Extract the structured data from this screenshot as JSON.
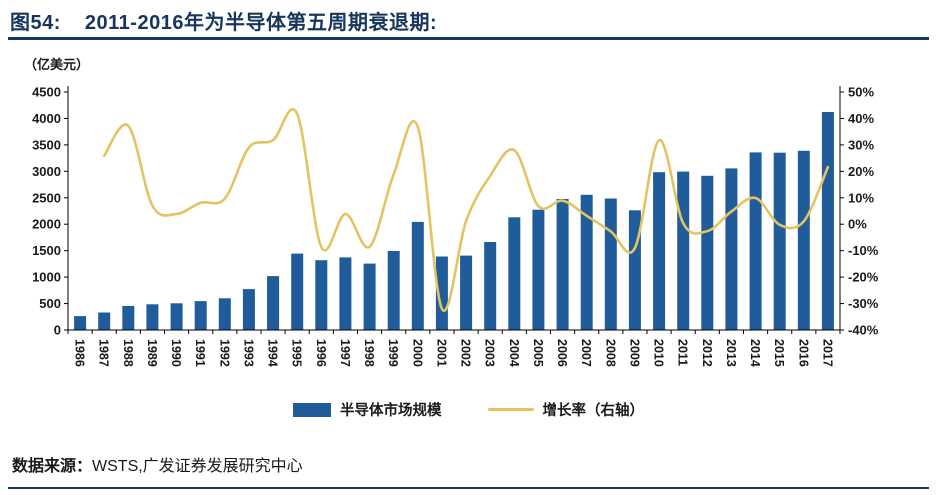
{
  "header": {
    "prefix": "图54:",
    "title": "2011-2016年为半导体第五周期衰退期:"
  },
  "chart_data": {
    "type": "bar+line",
    "title": "2011-2016年为半导体第五周期衰退期",
    "unit_label": "（亿美元）",
    "grid": false,
    "legend_position": "bottom",
    "categories": [
      "1986",
      "1987",
      "1988",
      "1989",
      "1990",
      "1991",
      "1992",
      "1993",
      "1994",
      "1995",
      "1996",
      "1997",
      "1998",
      "1999",
      "2000",
      "2001",
      "2002",
      "2003",
      "2004",
      "2005",
      "2006",
      "2007",
      "2008",
      "2009",
      "2010",
      "2011",
      "2012",
      "2013",
      "2014",
      "2015",
      "2016",
      "2017"
    ],
    "series": [
      {
        "name": "半导体市场规模",
        "type": "bar",
        "axis": "left",
        "color": "#1F5C99",
        "values": [
          263,
          331,
          454,
          486,
          505,
          546,
          599,
          773,
          1019,
          1444,
          1320,
          1372,
          1256,
          1494,
          2044,
          1390,
          1407,
          1664,
          2130,
          2275,
          2477,
          2556,
          2486,
          2263,
          2983,
          2995,
          2916,
          3056,
          3358,
          3352,
          3389,
          4122
        ]
      },
      {
        "name": "增长率（右轴）",
        "type": "line",
        "axis": "right",
        "color": "#E3C462",
        "values": [
          null,
          25.9,
          37.2,
          7.0,
          3.9,
          8.1,
          9.7,
          29.0,
          31.8,
          41.7,
          -8.6,
          3.9,
          -8.5,
          18.9,
          36.8,
          -32.0,
          1.2,
          18.3,
          28.0,
          6.8,
          8.9,
          3.2,
          -2.7,
          -9.0,
          31.8,
          0.4,
          -2.6,
          4.8,
          9.9,
          -0.2,
          1.1,
          21.6
        ]
      }
    ],
    "left_axis": {
      "min": 0,
      "max": 4500,
      "step": 500
    },
    "right_axis": {
      "min": -40,
      "max": 50,
      "step": 10,
      "suffix": "%"
    }
  },
  "footer": {
    "label": "数据来源：",
    "text": "WSTS,广发证券发展研究中心"
  },
  "colors": {
    "bar": "#1F5C99",
    "line": "#E3C462",
    "title": "#17365D",
    "rule": "#17365D",
    "axis": "#000000",
    "text": "#1a1a1a"
  }
}
